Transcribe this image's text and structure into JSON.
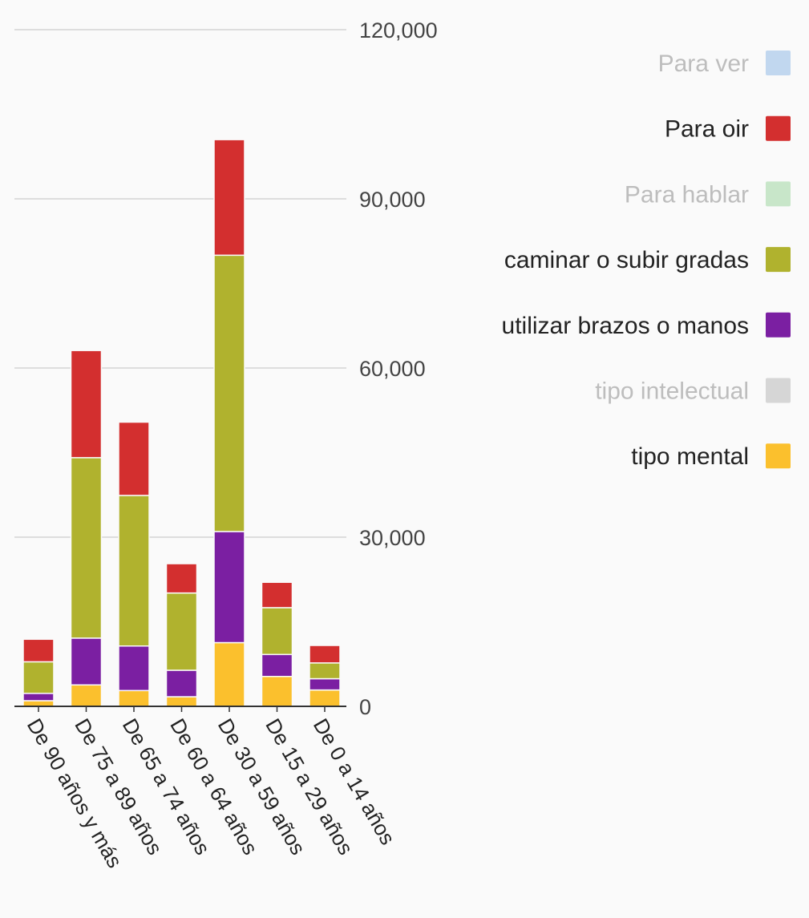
{
  "chart_data": {
    "type": "bar",
    "stacked": true,
    "categories": [
      "De 90 años y más",
      "De 75 a 89 años",
      "De 65 a 74 años",
      "De 60 a 64 años",
      "De 30 a 59 años",
      "De 15 a 29 años",
      "De 0 a 14 años"
    ],
    "series": [
      {
        "name": "Para ver",
        "color": "#c1d7ef",
        "hidden": true,
        "values": [
          null,
          null,
          null,
          null,
          null,
          null,
          null
        ]
      },
      {
        "name": "Para oir",
        "color": "#d32f2f",
        "hidden": false,
        "values": [
          4000,
          19000,
          13000,
          5200,
          20500,
          4500,
          3100
        ]
      },
      {
        "name": "Para hablar",
        "color": "#c8e6c9",
        "hidden": true,
        "values": [
          null,
          null,
          null,
          null,
          null,
          null,
          null
        ]
      },
      {
        "name": "caminar o subir gradas",
        "color": "#b0b22e",
        "hidden": false,
        "values": [
          5600,
          32000,
          26700,
          13700,
          49000,
          8300,
          2800
        ]
      },
      {
        "name": "utilizar brazos o manos",
        "color": "#7b1fa2",
        "hidden": false,
        "values": [
          1300,
          8300,
          7900,
          4700,
          19700,
          3900,
          2000
        ]
      },
      {
        "name": "tipo intelectual",
        "color": "#d6d6d6",
        "hidden": true,
        "values": [
          null,
          null,
          null,
          null,
          null,
          null,
          null
        ]
      },
      {
        "name": "tipo mental",
        "color": "#fbc02d",
        "hidden": false,
        "values": [
          1000,
          3800,
          2800,
          1700,
          11300,
          5300,
          2900
        ]
      }
    ],
    "y_ticks": [
      "0",
      "30,000",
      "60,000",
      "90,000",
      "120,000"
    ],
    "ylim": [
      0,
      120000
    ],
    "grid": true,
    "legend_position": "right",
    "axis_color": "#333333",
    "grid_color": "#dddddd",
    "legend_text_color": "#222222",
    "legend_hidden_text_color": "#bdbdbd"
  }
}
